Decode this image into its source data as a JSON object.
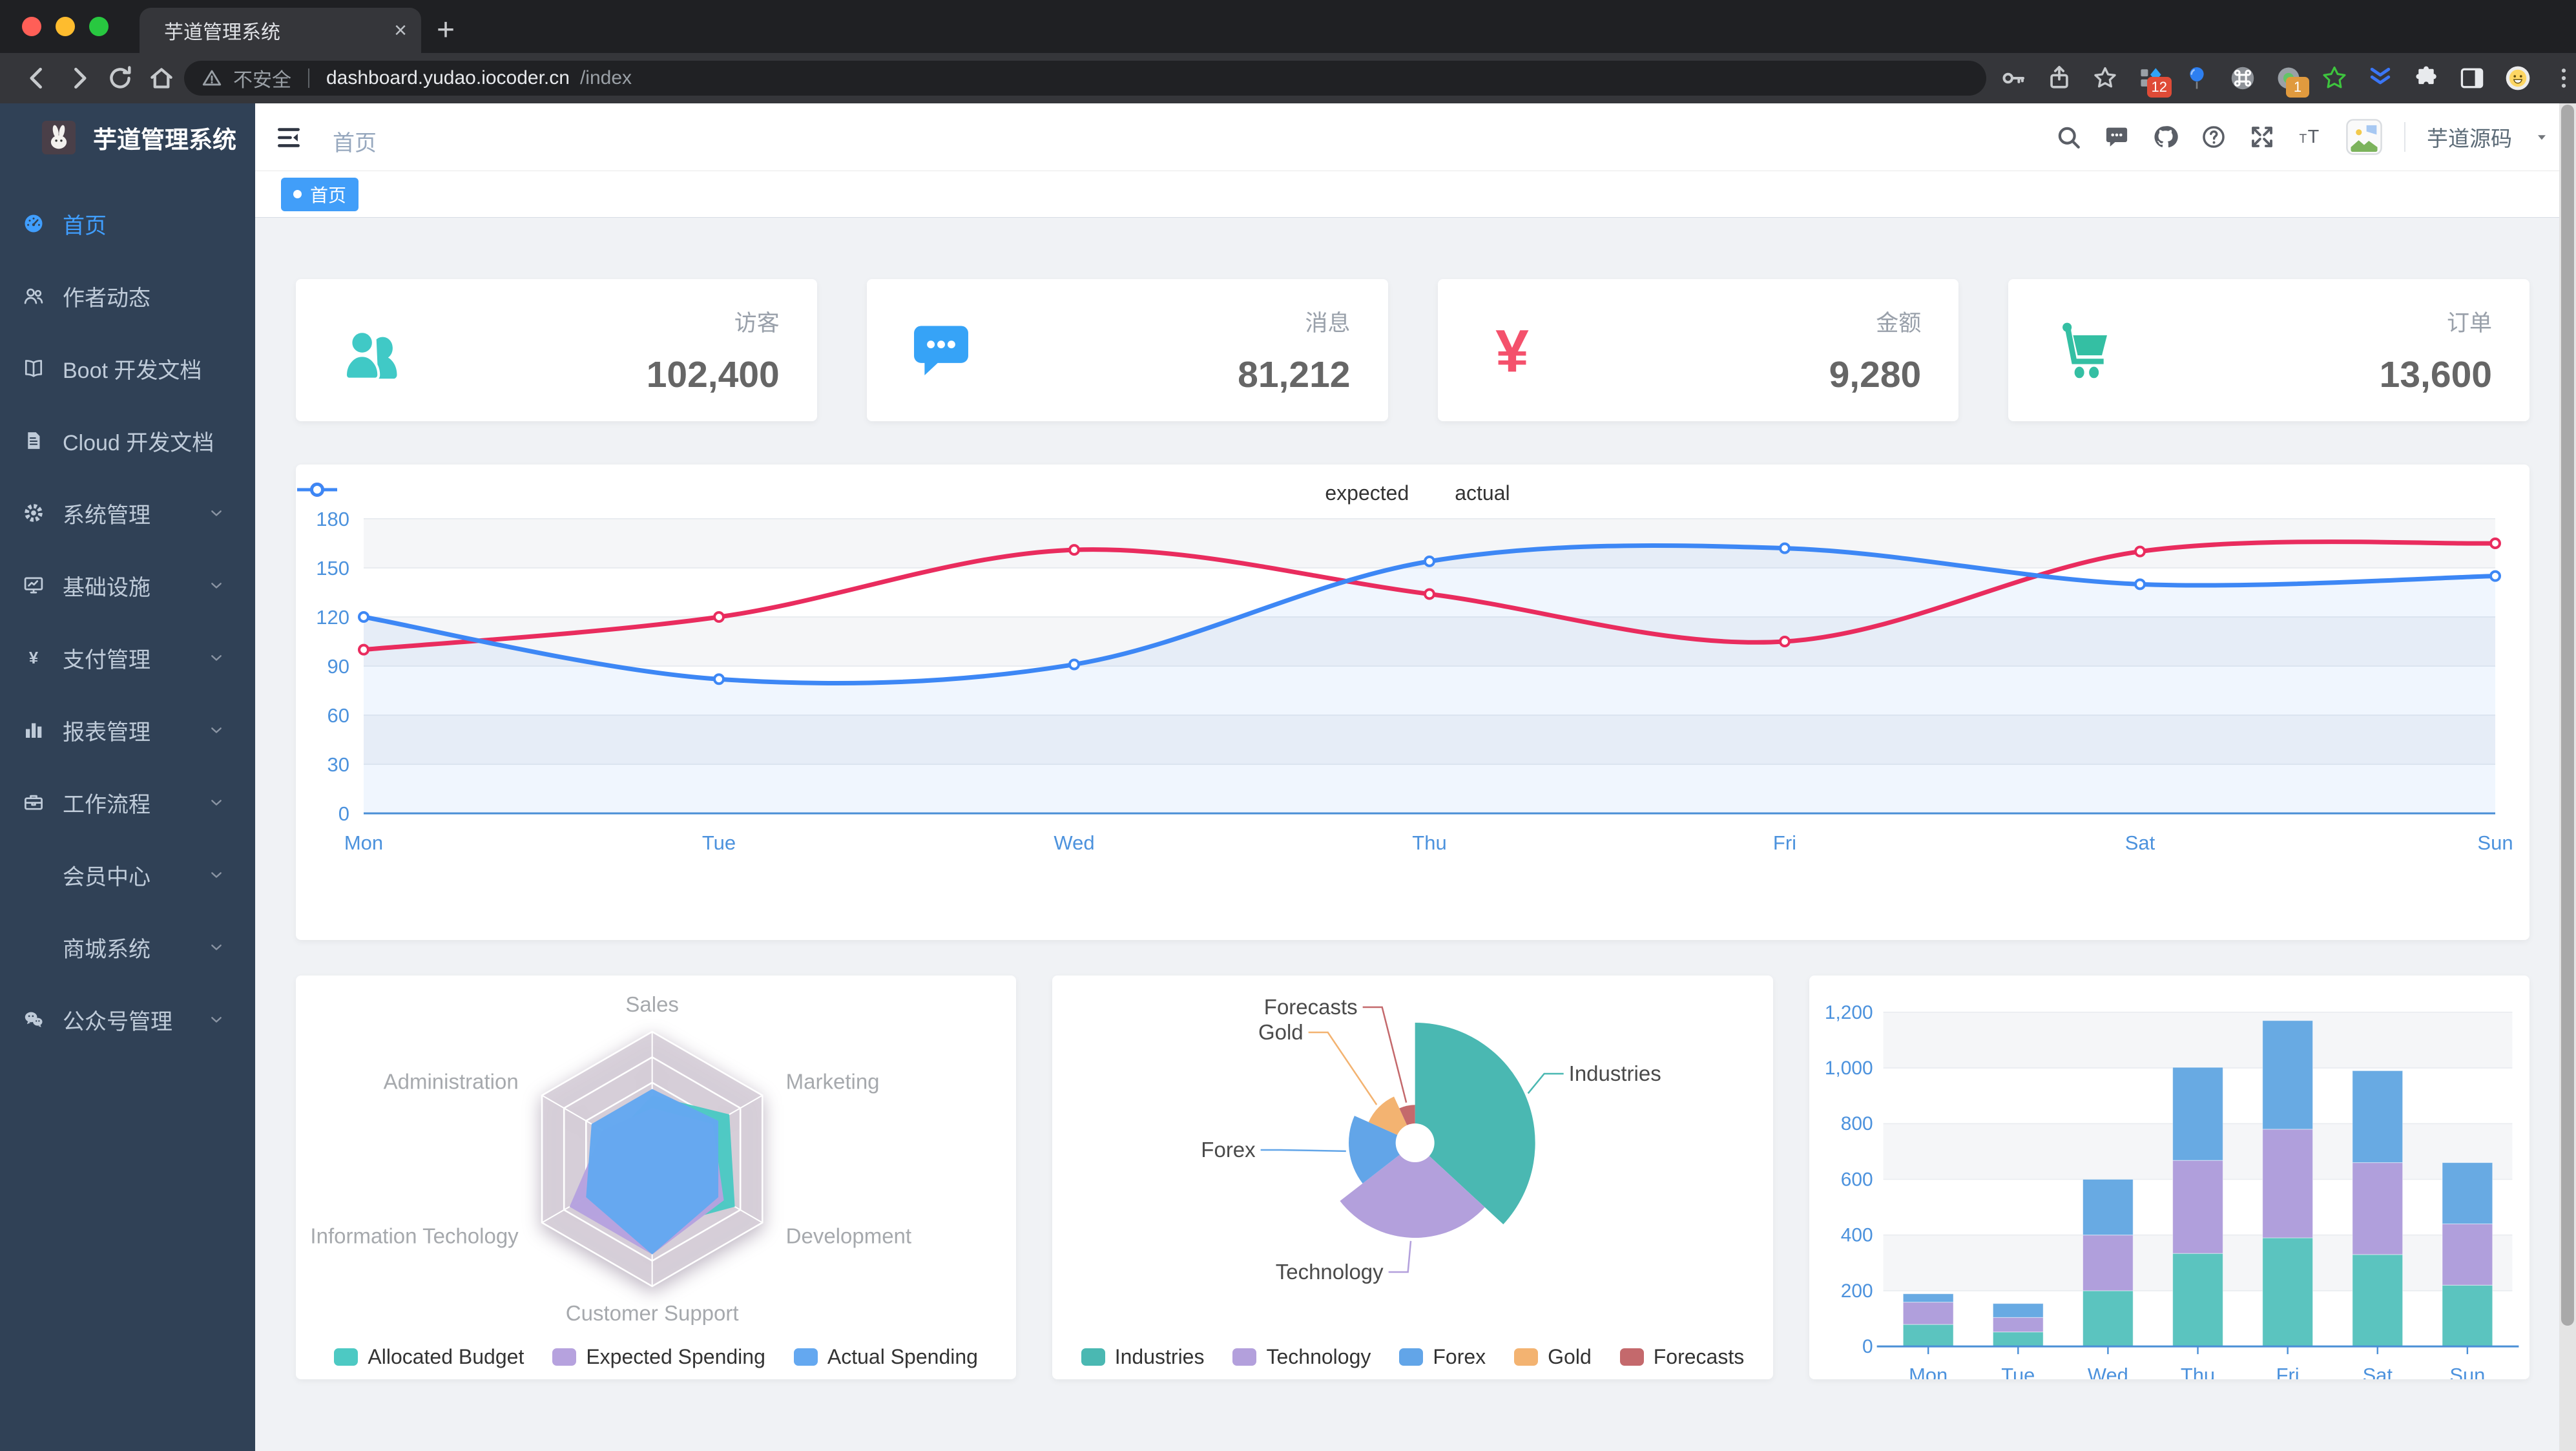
{
  "browser": {
    "tab_title": "芋道管理系统",
    "new_tab_label": "+",
    "security_label": "不安全",
    "url_host": "dashboard.yudao.iocoder.cn",
    "url_path": "/index",
    "extensions": [
      {
        "icon": "grid-diamond",
        "badge": "12",
        "badge_color": "#df4b37"
      },
      {
        "icon": "balloon",
        "badge": "",
        "badge_color": ""
      },
      {
        "icon": "command",
        "badge": "",
        "badge_color": ""
      },
      {
        "icon": "record",
        "badge": "1",
        "badge_color": "#e09a3e"
      },
      {
        "icon": "star-green",
        "badge": "",
        "badge_color": ""
      },
      {
        "icon": "chevrons",
        "badge": "",
        "badge_color": ""
      }
    ]
  },
  "sidebar": {
    "title": "芋道管理系统",
    "items": [
      {
        "label": "首页",
        "icon": "dashboard",
        "active": true,
        "expandable": false
      },
      {
        "label": "作者动态",
        "icon": "people",
        "active": false,
        "expandable": false
      },
      {
        "label": "Boot 开发文档",
        "icon": "book",
        "active": false,
        "expandable": false
      },
      {
        "label": "Cloud 开发文档",
        "icon": "document",
        "active": false,
        "expandable": false
      },
      {
        "label": "系统管理",
        "icon": "gear",
        "active": false,
        "expandable": true
      },
      {
        "label": "基础设施",
        "icon": "monitor",
        "active": false,
        "expandable": true
      },
      {
        "label": "支付管理",
        "icon": "yen",
        "active": false,
        "expandable": true
      },
      {
        "label": "报表管理",
        "icon": "bar-chart",
        "active": false,
        "expandable": true
      },
      {
        "label": "工作流程",
        "icon": "toolbox",
        "active": false,
        "expandable": true
      },
      {
        "label": "会员中心",
        "icon": "",
        "active": false,
        "expandable": true
      },
      {
        "label": "商城系统",
        "icon": "",
        "active": false,
        "expandable": true
      },
      {
        "label": "公众号管理",
        "icon": "wechat",
        "active": false,
        "expandable": true
      }
    ]
  },
  "header": {
    "breadcrumb": "首页",
    "icons": [
      "search",
      "message",
      "github",
      "help",
      "fullscreen",
      "font-size"
    ],
    "username": "芋道源码"
  },
  "tags": [
    {
      "label": "首页",
      "active": true,
      "color": "#419ef9"
    }
  ],
  "stats": [
    {
      "label": "访客",
      "value": "102,400",
      "icon": "people-group",
      "color": "#40c9c6"
    },
    {
      "label": "消息",
      "value": "81,212",
      "icon": "message-bubble",
      "color": "#36a3f7"
    },
    {
      "label": "金额",
      "value": "9,280",
      "icon": "yen-bold",
      "color": "#f4516c"
    },
    {
      "label": "订单",
      "value": "13,600",
      "icon": "cart",
      "color": "#34bfa3"
    }
  ],
  "chart_data": [
    {
      "id": "weekly-line",
      "type": "line",
      "categories": [
        "Mon",
        "Tue",
        "Wed",
        "Thu",
        "Fri",
        "Sat",
        "Sun"
      ],
      "series": [
        {
          "name": "expected",
          "color": "#e92c5e",
          "values": [
            100,
            120,
            161,
            134,
            105,
            160,
            165
          ],
          "area": false
        },
        {
          "name": "actual",
          "color": "#3d87f5",
          "values": [
            120,
            82,
            91,
            154,
            162,
            140,
            145
          ],
          "area": true
        }
      ],
      "ylim": [
        0,
        180
      ],
      "ytick_step": 30,
      "legend_position": "top",
      "grid_stripes": true,
      "axis_label_color": "#4c92dd"
    },
    {
      "id": "budget-radar",
      "type": "radar",
      "rings": 5,
      "indicators": [
        {
          "name": "Sales",
          "max": 10000
        },
        {
          "name": "Administration",
          "max": 20000
        },
        {
          "name": "Information Techology",
          "max": 20000
        },
        {
          "name": "Customer Support",
          "max": 20000
        },
        {
          "name": "Development",
          "max": 20000
        },
        {
          "name": "Marketing",
          "max": 20000
        }
      ],
      "series": [
        {
          "name": "Allocated Budget",
          "color": "#4dc9c3",
          "values": [
            5000,
            7000,
            12000,
            11000,
            15000,
            14000
          ]
        },
        {
          "name": "Expected Spending",
          "color": "#b6a2de",
          "values": [
            4000,
            9000,
            15000,
            15000,
            13000,
            11000
          ]
        },
        {
          "name": "Actual Spending",
          "color": "#64a8f0",
          "values": [
            5500,
            11000,
            12000,
            15000,
            12000,
            12000
          ]
        }
      ]
    },
    {
      "id": "category-pie",
      "type": "pie",
      "rose": true,
      "items": [
        {
          "name": "Industries",
          "value": 320,
          "color": "#4ab8b2"
        },
        {
          "name": "Technology",
          "value": 240,
          "color": "#b3a0dc"
        },
        {
          "name": "Forex",
          "value": 149,
          "color": "#62a5e8"
        },
        {
          "name": "Gold",
          "value": 100,
          "color": "#f3b371"
        },
        {
          "name": "Forecasts",
          "value": 59,
          "color": "#c4696c"
        }
      ]
    },
    {
      "id": "weekly-bar",
      "type": "stacked-bar",
      "categories": [
        "Mon",
        "Tue",
        "Wed",
        "Thu",
        "Fri",
        "Sat",
        "Sun"
      ],
      "series": [
        {
          "color": "#5bc4bf",
          "values": [
            79,
            52,
            200,
            334,
            390,
            330,
            220
          ]
        },
        {
          "color": "#b09fdc",
          "values": [
            80,
            52,
            200,
            334,
            390,
            330,
            220
          ]
        },
        {
          "color": "#68aae3",
          "values": [
            30,
            50,
            200,
            334,
            390,
            330,
            220
          ]
        }
      ],
      "ylim": [
        0,
        1200
      ],
      "ytick_step": 200,
      "axis_label_color": "#4c92dd"
    }
  ]
}
